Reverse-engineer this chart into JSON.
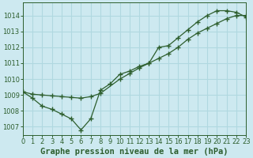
{
  "title": "Graphe pression niveau de la mer (hPa)",
  "bg_color": "#cde9f0",
  "grid_color": "#b0d8e0",
  "line_color": "#2d5e2d",
  "marker_color": "#2d5e2d",
  "xlim": [
    0,
    23
  ],
  "ylim": [
    1006.5,
    1014.8
  ],
  "yticks": [
    1007,
    1008,
    1009,
    1010,
    1011,
    1012,
    1013,
    1014
  ],
  "xticks": [
    0,
    1,
    2,
    3,
    4,
    5,
    6,
    7,
    8,
    9,
    10,
    11,
    12,
    13,
    14,
    15,
    16,
    17,
    18,
    19,
    20,
    21,
    22,
    23
  ],
  "series1_x": [
    0,
    1,
    2,
    3,
    4,
    5,
    6,
    7,
    8,
    9,
    10,
    11,
    12,
    13,
    14,
    15,
    16,
    17,
    18,
    19,
    20,
    21,
    22,
    23
  ],
  "series1_y": [
    1009.2,
    1008.8,
    1008.3,
    1008.1,
    1007.8,
    1007.5,
    1006.8,
    1007.5,
    1009.3,
    1009.7,
    1010.3,
    1010.5,
    1010.8,
    1011.0,
    1012.0,
    1012.1,
    1012.6,
    1013.1,
    1013.6,
    1014.0,
    1014.3,
    1014.3,
    1014.2,
    1013.9
  ],
  "series2_x": [
    0,
    1,
    2,
    3,
    4,
    5,
    6,
    7,
    8,
    10,
    11,
    12,
    13,
    14,
    15,
    16,
    17,
    18,
    19,
    20,
    21,
    22,
    23
  ],
  "series2_y": [
    1009.2,
    1009.05,
    1009.0,
    1008.95,
    1008.9,
    1008.85,
    1008.8,
    1008.9,
    1009.1,
    1010.0,
    1010.35,
    1010.7,
    1011.0,
    1011.3,
    1011.6,
    1012.0,
    1012.5,
    1012.9,
    1013.2,
    1013.5,
    1013.8,
    1014.0,
    1014.0
  ],
  "title_fontsize": 7.5,
  "tick_fontsize": 6.0
}
